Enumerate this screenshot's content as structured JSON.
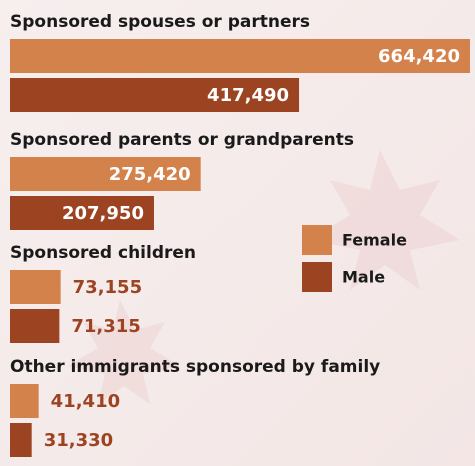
{
  "chart_data": {
    "type": "bar",
    "orientation": "horizontal",
    "categories": [
      "Sponsored spouses or partners",
      "Sponsored parents or grandparents",
      "Sponsored children",
      "Other immigrants sponsored by family"
    ],
    "series": [
      {
        "name": "Female",
        "color": "#d4824c",
        "values": [
          664420,
          275420,
          73155,
          41410
        ],
        "value_labels": [
          "664,420",
          "275,420",
          "73,155",
          "41,410"
        ]
      },
      {
        "name": "Male",
        "color": "#9c4422",
        "values": [
          417490,
          207950,
          71315,
          31330
        ],
        "value_labels": [
          "417,490",
          "207,950",
          "71,315",
          "31,330"
        ]
      }
    ]
  }
}
